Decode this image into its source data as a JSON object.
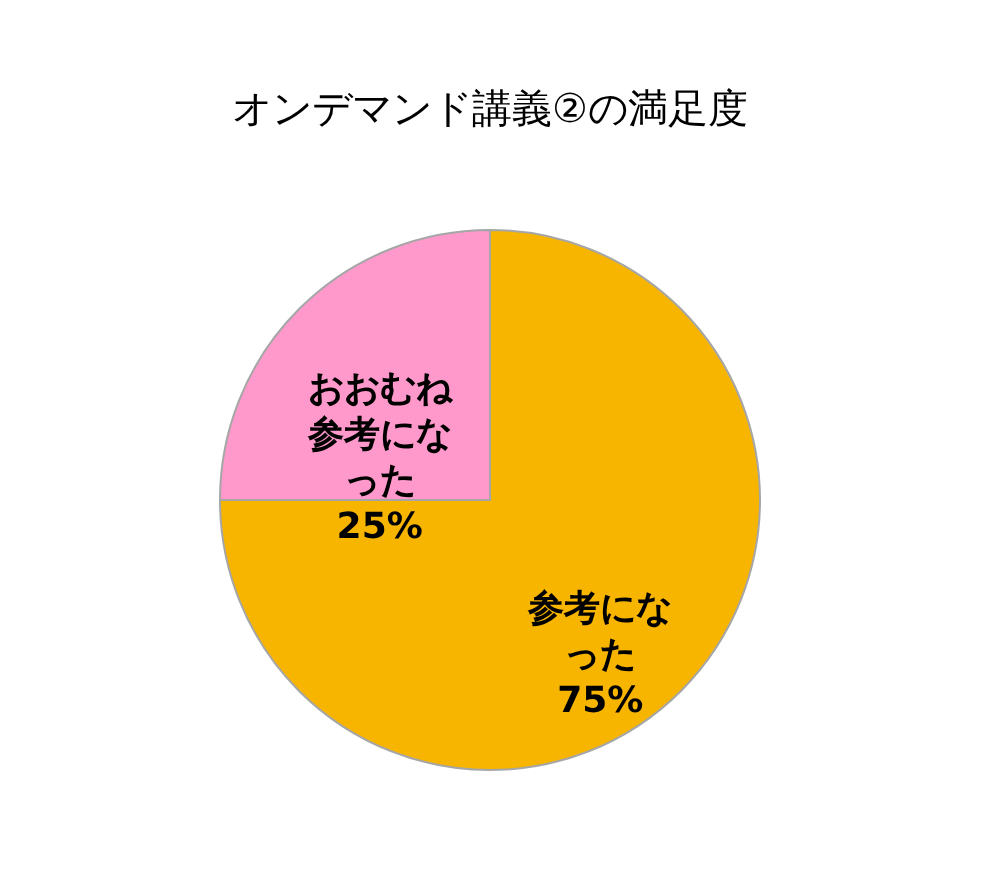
{
  "chart_data": {
    "type": "pie",
    "title": "オンデマンド講義②の満足度",
    "categories": [
      "参考になった",
      "おおむね参考になった"
    ],
    "values": [
      75,
      25
    ],
    "colors": [
      "#f7b500",
      "#ff99cc"
    ],
    "value_labels": [
      "75%",
      "25%"
    ],
    "legend": false
  }
}
